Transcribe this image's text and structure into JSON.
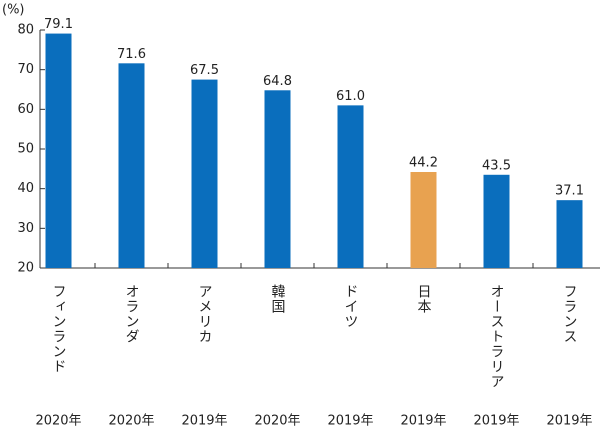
{
  "chart_data": {
    "type": "bar",
    "y_unit": "(%)",
    "categories": [
      "フィンランド",
      "オランダ",
      "アメリカ",
      "韓国",
      "ドイツ",
      "日本",
      "オーストラリア",
      "フランス"
    ],
    "years": [
      "2020年",
      "2020年",
      "2019年",
      "2020年",
      "2019年",
      "2019年",
      "2019年",
      "2019年"
    ],
    "values": [
      79.1,
      71.6,
      67.5,
      64.8,
      61.0,
      44.2,
      43.5,
      37.1
    ],
    "value_labels": [
      "79.1",
      "71.6",
      "67.5",
      "64.8",
      "61.0",
      "44.2",
      "43.5",
      "37.1"
    ],
    "colors": [
      "#0a6ebd",
      "#0a6ebd",
      "#0a6ebd",
      "#0a6ebd",
      "#0a6ebd",
      "#e8a250",
      "#0a6ebd",
      "#0a6ebd"
    ],
    "ylim": [
      20,
      80
    ],
    "yticks": [
      20,
      30,
      40,
      50,
      60,
      70,
      80
    ],
    "grid": false
  }
}
